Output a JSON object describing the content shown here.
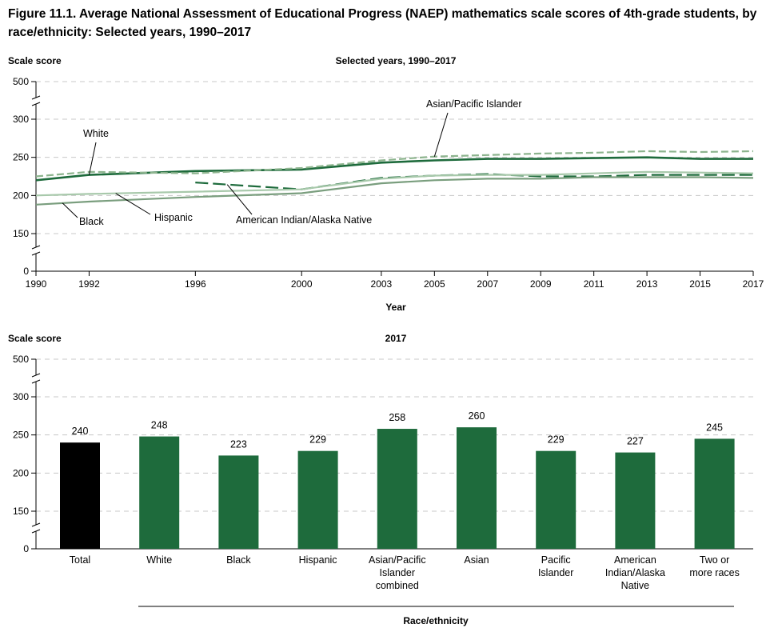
{
  "figure": {
    "title": "Figure 11.1. Average National Assessment of Educational Progress (NAEP) mathematics scale scores of 4th-grade students, by race/ethnicity: Selected years, 1990–2017"
  },
  "chart_data": [
    {
      "type": "line",
      "title": "Selected years, 1990–2017",
      "ylabel": "Scale score",
      "xlabel": "Year",
      "x": [
        1990,
        1992,
        1996,
        2000,
        2003,
        2005,
        2007,
        2009,
        2011,
        2013,
        2015,
        2017
      ],
      "x_tick_labels": [
        "1990",
        "1992",
        "1996",
        "2000",
        "2003",
        "2005",
        "2007",
        "2009",
        "2011",
        "2013",
        "2015",
        "2017"
      ],
      "y_ticks": [
        0,
        150,
        200,
        250,
        300,
        500
      ],
      "y_tick_labels": [
        "0",
        "150",
        "200",
        "250",
        "300",
        "500"
      ],
      "axis_break": true,
      "grid": true,
      "series": [
        {
          "name": "White",
          "color": "#1e6b3c",
          "style": "solid",
          "x": [
            1990,
            1992,
            1996,
            2000,
            2003,
            2005,
            2007,
            2009,
            2011,
            2013,
            2015,
            2017
          ],
          "values": [
            220,
            227,
            232,
            234,
            243,
            246,
            248,
            248,
            249,
            250,
            248,
            248
          ]
        },
        {
          "name": "Asian/Pacific Islander",
          "color": "#8db48e",
          "style": "dashed",
          "x": [
            1990,
            1992,
            1996,
            2000,
            2003,
            2005,
            2007,
            2009,
            2011,
            2013,
            2015,
            2017
          ],
          "values": [
            225,
            231,
            229,
            236,
            246,
            251,
            253,
            255,
            256,
            258,
            257,
            258
          ]
        },
        {
          "name": "American Indian/Alaska Native",
          "color": "#1e6b3c",
          "style": "dashed",
          "x": [
            1996,
            2000,
            2003,
            2005,
            2007,
            2009,
            2011,
            2013,
            2015,
            2017
          ],
          "values": [
            217,
            208,
            223,
            226,
            228,
            225,
            225,
            227,
            227,
            227
          ]
        },
        {
          "name": "Hispanic",
          "color": "#a8c9ab",
          "style": "solid",
          "x": [
            1990,
            1992,
            1996,
            2000,
            2003,
            2005,
            2007,
            2009,
            2011,
            2013,
            2015,
            2017
          ],
          "values": [
            200,
            202,
            205,
            208,
            222,
            226,
            227,
            227,
            229,
            231,
            230,
            229
          ]
        },
        {
          "name": "Black",
          "color": "#7a9e7e",
          "style": "solid",
          "x": [
            1990,
            1992,
            1996,
            2000,
            2003,
            2005,
            2007,
            2009,
            2011,
            2013,
            2015,
            2017
          ],
          "values": [
            188,
            192,
            198,
            203,
            216,
            220,
            222,
            222,
            224,
            224,
            224,
            223
          ]
        }
      ],
      "labels": {
        "white": "White",
        "asian_pi": "Asian/Pacific Islander",
        "ai_an": "American Indian/Alaska Native",
        "hispanic": "Hispanic",
        "black": "Black"
      }
    },
    {
      "type": "bar",
      "title": "2017",
      "ylabel": "Scale score",
      "xlabel": "Race/ethnicity",
      "categories": [
        "Total",
        "White",
        "Black",
        "Hispanic",
        "Asian/Pacific Islander combined",
        "Asian",
        "Pacific Islander",
        "American Indian/Alaska Native",
        "Two or more races"
      ],
      "category_lines": [
        [
          "Total"
        ],
        [
          "White"
        ],
        [
          "Black"
        ],
        [
          "Hispanic"
        ],
        [
          "Asian/Pacific",
          "Islander",
          "combined"
        ],
        [
          "Asian"
        ],
        [
          "Pacific",
          "Islander"
        ],
        [
          "American",
          "Indian/Alaska",
          "Native"
        ],
        [
          "Two or",
          "more races"
        ]
      ],
      "values": [
        240,
        248,
        223,
        229,
        258,
        260,
        229,
        227,
        245
      ],
      "value_labels": [
        "240",
        "248",
        "223",
        "229",
        "258",
        "260",
        "229",
        "227",
        "245"
      ],
      "colors": [
        "#000000",
        "#1e6b3c",
        "#1e6b3c",
        "#1e6b3c",
        "#1e6b3c",
        "#1e6b3c",
        "#1e6b3c",
        "#1e6b3c",
        "#1e6b3c"
      ],
      "y_ticks": [
        0,
        150,
        200,
        250,
        300,
        500
      ],
      "y_tick_labels": [
        "0",
        "150",
        "200",
        "250",
        "300",
        "500"
      ],
      "axis_break": true,
      "grid": true
    }
  ]
}
